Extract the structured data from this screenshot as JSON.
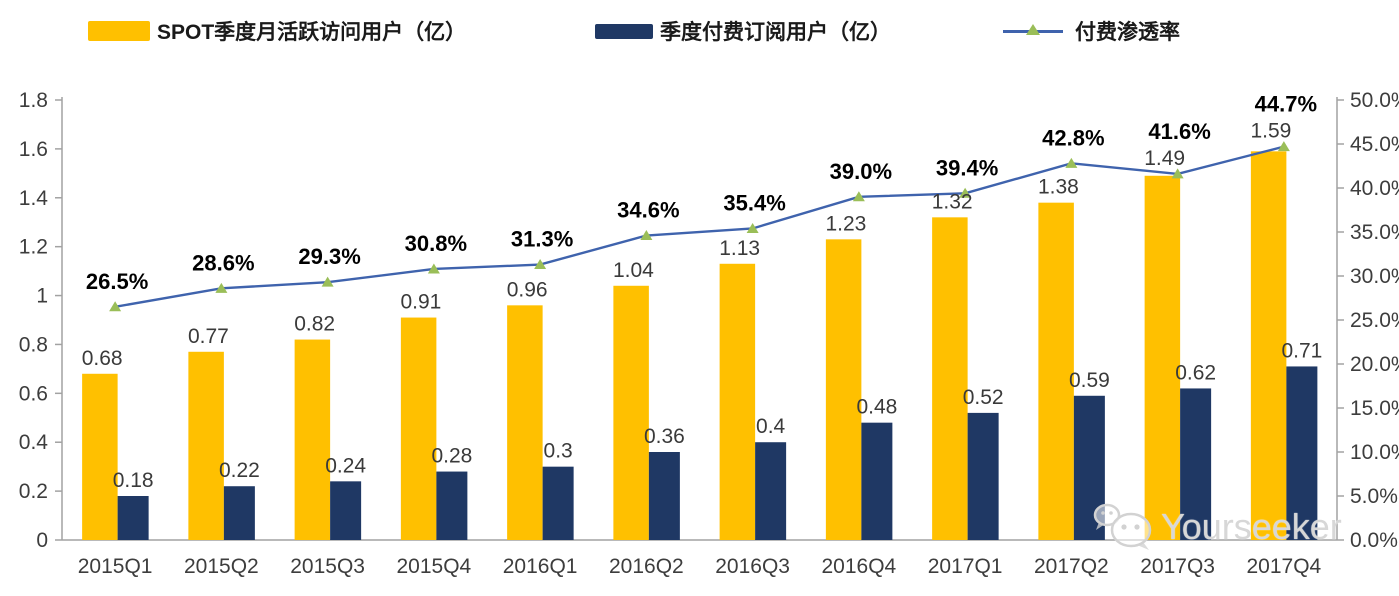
{
  "legend": {
    "items": [
      {
        "label": "SPOT季度月活跃访问用户（亿）",
        "color": "#FFC000",
        "type": "bar"
      },
      {
        "label": "季度付费订阅用户（亿）",
        "color": "#1F3864",
        "type": "bar"
      },
      {
        "label": "付费渗透率",
        "color": "#3F63AD",
        "marker_color": "#9ABE58",
        "type": "line"
      }
    ]
  },
  "chart_data": {
    "type": "bar+line",
    "categories": [
      "2015Q1",
      "2015Q2",
      "2015Q3",
      "2015Q4",
      "2016Q1",
      "2016Q2",
      "2016Q3",
      "2016Q4",
      "2017Q1",
      "2017Q2",
      "2017Q3",
      "2017Q4"
    ],
    "series": [
      {
        "name": "SPOT季度月活跃访问用户（亿）",
        "type": "bar",
        "axis": "left",
        "color": "#FFC000",
        "values": [
          0.68,
          0.77,
          0.82,
          0.91,
          0.96,
          1.04,
          1.13,
          1.23,
          1.32,
          1.38,
          1.49,
          1.59
        ]
      },
      {
        "name": "季度付费订阅用户（亿）",
        "type": "bar",
        "axis": "left",
        "color": "#1F3864",
        "values": [
          0.18,
          0.22,
          0.24,
          0.28,
          0.3,
          0.36,
          0.4,
          0.48,
          0.52,
          0.59,
          0.62,
          0.71
        ]
      },
      {
        "name": "付费渗透率",
        "type": "line",
        "axis": "right",
        "color": "#3F63AD",
        "marker": "triangle",
        "marker_color": "#9ABE58",
        "values": [
          26.5,
          28.6,
          29.3,
          30.8,
          31.3,
          34.6,
          35.4,
          39.0,
          39.4,
          42.8,
          41.6,
          44.7
        ]
      }
    ],
    "left_axis": {
      "min": 0,
      "max": 1.8,
      "ticks": [
        0,
        0.2,
        0.4,
        0.6,
        0.8,
        1,
        1.2,
        1.4,
        1.6,
        1.8
      ]
    },
    "right_axis": {
      "min": 0,
      "max": 50,
      "ticks": [
        0,
        5,
        10,
        15,
        20,
        25,
        30,
        35,
        40,
        45,
        50
      ],
      "format": "percent"
    },
    "grid": false,
    "legend_position": "top",
    "colors": {
      "axis_line": "#a2a2a2",
      "tick_label": "#3d3d3d",
      "value_label": "#3a3a3a",
      "pct_label": "#000000"
    }
  },
  "watermark": {
    "text": "Yourseeker",
    "icon": "wechat-icon"
  }
}
